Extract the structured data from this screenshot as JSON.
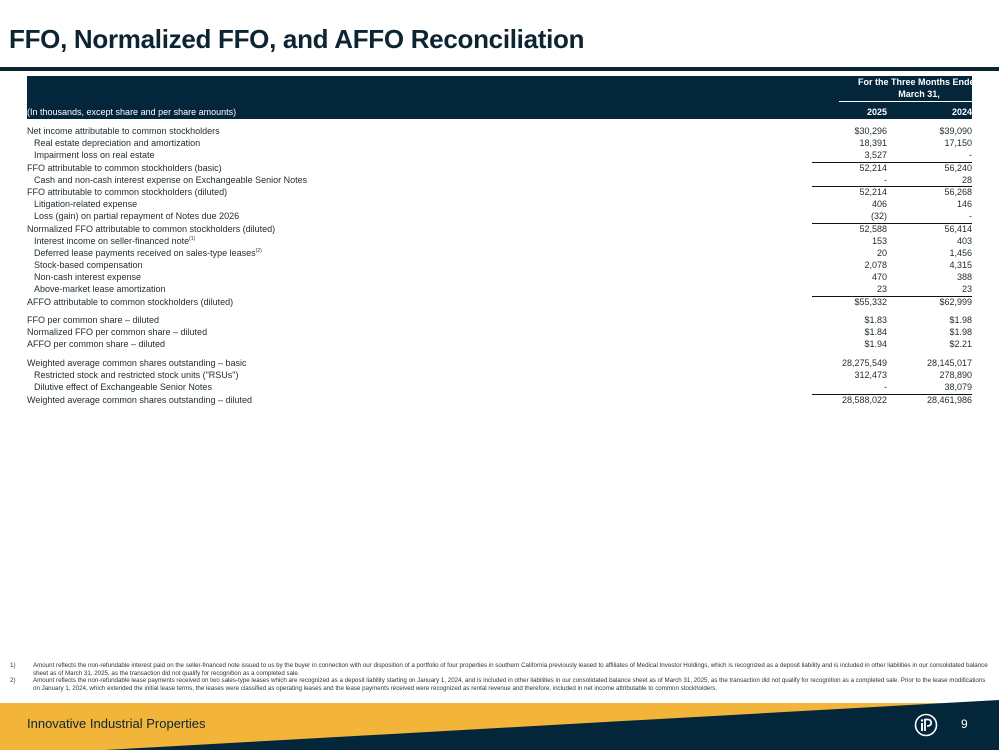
{
  "title": "FFO, Normalized FFO, and AFFO Reconciliation",
  "table": {
    "period_line1": "For the Three Months Ended",
    "period_line2": "March 31,",
    "units_note": "(In thousands, except share and per share amounts)",
    "columns": [
      "2025",
      "2024"
    ],
    "groups": [
      [
        {
          "label": "Net income attributable to common stockholders",
          "indent": false,
          "subtotal": false,
          "values": [
            "$30,296",
            "$39,090"
          ]
        },
        {
          "label": "Real estate depreciation and amortization",
          "indent": true,
          "subtotal": false,
          "values": [
            "18,391",
            "17,150"
          ]
        },
        {
          "label": "Impairment loss on real estate",
          "indent": true,
          "subtotal": false,
          "values": [
            "3,527",
            "-"
          ]
        },
        {
          "label": "FFO attributable to common stockholders (basic)",
          "indent": false,
          "subtotal": true,
          "values": [
            "52,214",
            "56,240"
          ]
        },
        {
          "label": "Cash and non-cash interest expense on Exchangeable Senior Notes",
          "indent": true,
          "subtotal": false,
          "values": [
            "-",
            "28"
          ]
        },
        {
          "label": "FFO attributable to common stockholders (diluted)",
          "indent": false,
          "subtotal": true,
          "values": [
            "52,214",
            "56,268"
          ]
        },
        {
          "label": "Litigation-related expense",
          "indent": true,
          "subtotal": false,
          "values": [
            "406",
            "146"
          ]
        },
        {
          "label": "Loss (gain) on partial repayment of Notes due 2026",
          "indent": true,
          "subtotal": false,
          "values": [
            "(32)",
            "-"
          ]
        },
        {
          "label": "Normalized FFO attributable to common stockholders (diluted)",
          "indent": false,
          "subtotal": true,
          "values": [
            "52,588",
            "56,414"
          ]
        },
        {
          "label": "Interest income on seller-financed note",
          "note_ref": "(1)",
          "indent": true,
          "subtotal": false,
          "values": [
            "153",
            "403"
          ]
        },
        {
          "label": "Deferred lease payments received on sales-type leases",
          "note_ref": "(2)",
          "indent": true,
          "subtotal": false,
          "values": [
            "20",
            "1,456"
          ]
        },
        {
          "label": "Stock-based compensation",
          "indent": true,
          "subtotal": false,
          "values": [
            "2,078",
            "4,315"
          ]
        },
        {
          "label": "Non-cash interest expense",
          "indent": true,
          "subtotal": false,
          "values": [
            "470",
            "388"
          ]
        },
        {
          "label": "Above-market lease amortization",
          "indent": true,
          "subtotal": false,
          "values": [
            "23",
            "23"
          ]
        },
        {
          "label": "AFFO attributable to common stockholders (diluted)",
          "indent": false,
          "subtotal": true,
          "values": [
            "$55,332",
            "$62,999"
          ]
        }
      ],
      [
        {
          "label": "FFO per common share – diluted",
          "indent": false,
          "subtotal": false,
          "values": [
            "$1.83",
            "$1.98"
          ]
        },
        {
          "label": "Normalized FFO per common share – diluted",
          "indent": false,
          "subtotal": false,
          "values": [
            "$1.84",
            "$1.98"
          ]
        },
        {
          "label": "AFFO per common share – diluted",
          "indent": false,
          "subtotal": false,
          "values": [
            "$1.94",
            "$2.21"
          ]
        }
      ],
      [
        {
          "label": "Weighted average common shares outstanding – basic",
          "indent": false,
          "subtotal": false,
          "values": [
            "28,275,549",
            "28,145,017"
          ]
        },
        {
          "label": "Restricted stock and restricted stock units (\"RSUs\")",
          "indent": true,
          "subtotal": false,
          "values": [
            "312,473",
            "278,890"
          ]
        },
        {
          "label": "Dilutive effect of Exchangeable Senior Notes",
          "indent": true,
          "subtotal": false,
          "values": [
            "-",
            "38,079"
          ]
        },
        {
          "label": "Weighted average common shares outstanding – diluted",
          "indent": false,
          "subtotal": true,
          "values": [
            "28,588,022",
            "28,461,986"
          ]
        }
      ]
    ]
  },
  "footnotes": [
    {
      "num": "1)",
      "text": "Amount reflects the non-refundable interest paid on the seller-financed note issued to us by the buyer in connection with our disposition of a portfolio of four properties in southern California previously leased to affiliates of Medical Investor Holdings, which is recognized as a deposit liability and is included in other liabilities in our consolidated balance sheet as of March 31, 2025, as the transaction did not qualify for recognition as a completed sale."
    },
    {
      "num": "2)",
      "text": "Amount reflects the non-refundable lease payments received on two sales-type leases which are recognized as a deposit liability starting on January 1, 2024, and is included in other liabilities in our consolidated balance sheet as of March 31, 2025, as the transaction did not qualify for recognition as a completed sale. Prior to the lease modifications on January 1, 2024, which extended the initial lease terms, the leases were classified as operating leases and the lease payments received were recognized as rental revenue and therefore, included in net income attributable to common stockholders."
    }
  ],
  "footer": {
    "company": "Innovative Industrial Properties",
    "logo_text": "iP",
    "page_number": "9"
  },
  "colors": {
    "navy": "#03263a",
    "gold": "#f2b53a"
  }
}
